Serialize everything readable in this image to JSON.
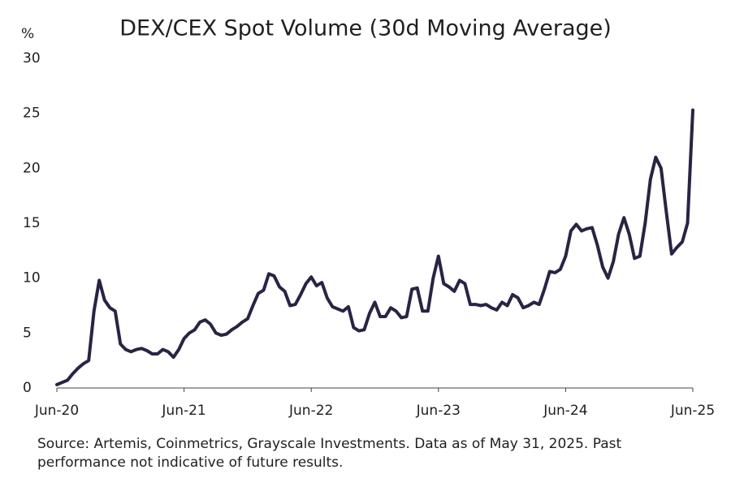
{
  "chart_data": {
    "type": "line",
    "title": "DEX/CEX Spot Volume (30d Moving Average)",
    "y_label": "%",
    "source": "Source: Artemis, Coinmetrics, Grayscale Investments. Data as of May 31, 2025. Past performance not indicative of future results.",
    "categories": [
      "Jun-20",
      null,
      null,
      null,
      null,
      null,
      null,
      null,
      null,
      null,
      null,
      null,
      null,
      null,
      null,
      null,
      null,
      null,
      null,
      null,
      null,
      null,
      null,
      null,
      "Jun-21",
      null,
      null,
      null,
      null,
      null,
      null,
      null,
      null,
      null,
      null,
      null,
      null,
      null,
      null,
      null,
      null,
      null,
      null,
      null,
      null,
      null,
      null,
      null,
      "Jun-22",
      null,
      null,
      null,
      null,
      null,
      null,
      null,
      null,
      null,
      null,
      null,
      null,
      null,
      null,
      null,
      null,
      null,
      null,
      null,
      null,
      null,
      null,
      null,
      "Jun-23",
      null,
      null,
      null,
      null,
      null,
      null,
      null,
      null,
      null,
      null,
      null,
      null,
      null,
      null,
      null,
      null,
      null,
      null,
      null,
      null,
      null,
      null,
      null,
      "Jun-24",
      null,
      null,
      null,
      null,
      null,
      null,
      null,
      null,
      null,
      null,
      null,
      null,
      null,
      null,
      null,
      null,
      null,
      null,
      null,
      null,
      null,
      null,
      null,
      "Jun-25"
    ],
    "series": [
      {
        "name": "DEX/CEX Spot Volume",
        "color": "#2a2344",
        "values": [
          0.3,
          0.5,
          0.7,
          1.3,
          1.8,
          2.2,
          2.5,
          7.0,
          9.8,
          8.0,
          7.3,
          7.0,
          4.0,
          3.5,
          3.3,
          3.5,
          3.6,
          3.4,
          3.1,
          3.1,
          3.5,
          3.3,
          2.8,
          3.5,
          4.5,
          5.0,
          5.3,
          6.0,
          6.2,
          5.8,
          5.0,
          4.8,
          4.9,
          5.3,
          5.6,
          6.0,
          6.3,
          7.5,
          8.6,
          8.9,
          10.4,
          10.2,
          9.2,
          8.8,
          7.5,
          7.6,
          8.5,
          9.5,
          10.1,
          9.3,
          9.6,
          8.2,
          7.4,
          7.2,
          7.0,
          7.4,
          5.5,
          5.2,
          5.3,
          6.8,
          7.8,
          6.5,
          6.5,
          7.3,
          7.0,
          6.4,
          6.5,
          9.0,
          9.1,
          7.0,
          7.0,
          10.0,
          12.0,
          9.5,
          9.2,
          8.8,
          9.8,
          9.5,
          7.6,
          7.6,
          7.5,
          7.6,
          7.3,
          7.1,
          7.8,
          7.5,
          8.5,
          8.2,
          7.3,
          7.5,
          7.8,
          7.6,
          9.0,
          10.6,
          10.5,
          10.8,
          12.0,
          14.3,
          14.9,
          14.3,
          14.5,
          14.6,
          13.0,
          11.0,
          10.0,
          11.5,
          14.0,
          15.5,
          14.0,
          11.8,
          12.0,
          15.0,
          19.0,
          21.0,
          20.0,
          16.0,
          12.2,
          12.8,
          13.3,
          15.0,
          25.3
        ]
      }
    ],
    "ylim": [
      0,
      30
    ],
    "yticks": [
      0,
      5,
      10,
      15,
      20,
      25,
      30
    ],
    "grid": false
  }
}
